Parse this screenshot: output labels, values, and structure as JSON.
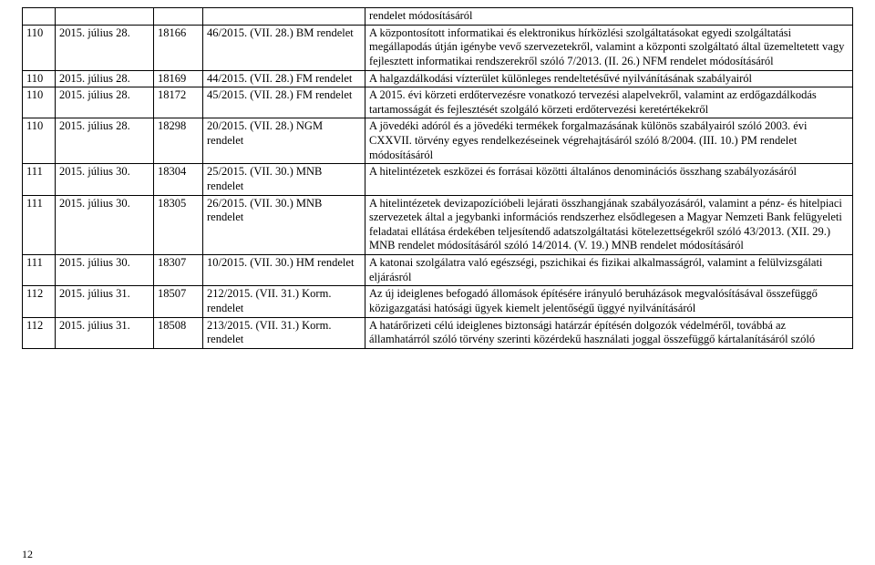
{
  "table": {
    "columns": [
      "c1",
      "c2",
      "c3",
      "c4",
      "c5"
    ],
    "rows": [
      {
        "c1": "",
        "c2": "",
        "c3": "",
        "c4": "",
        "c5": "rendelet módosításáról"
      },
      {
        "c1": "110",
        "c2": "2015. július 28.",
        "c3": "18166",
        "c4": "46/2015. (VII. 28.) BM rendelet",
        "c5": "A központosított informatikai és elektronikus hírközlési szolgáltatásokat egyedi szolgáltatási megállapodás útján igénybe vevő szervezetekről, valamint a központi szolgáltató által üzemeltetett vagy fejlesztett informatikai rendszerekről szóló 7/2013. (II. 26.) NFM rendelet módosításáról"
      },
      {
        "c1": "110",
        "c2": "2015. július 28.",
        "c3": "18169",
        "c4": "44/2015. (VII. 28.) FM rendelet",
        "c5": "A halgazdálkodási vízterület különleges rendeltetésűvé nyilvánításának szabályairól"
      },
      {
        "c1": "110",
        "c2": "2015. július 28.",
        "c3": "18172",
        "c4": "45/2015. (VII. 28.) FM rendelet",
        "c5": "A 2015. évi körzeti erdőtervezésre vonatkozó tervezési alapelvekről, valamint az erdőgazdálkodás tartamosságát és fejlesztését szolgáló körzeti erdőtervezési keretértékekről"
      },
      {
        "c1": "110",
        "c2": "2015. július 28.",
        "c3": "18298",
        "c4": "20/2015. (VII. 28.) NGM rendelet",
        "c5": "A jövedéki adóról és a jövedéki termékek forgalmazásának különös szabályairól szóló 2003. évi CXXVII. törvény egyes rendelkezéseinek végrehajtásáról szóló 8/2004. (III. 10.) PM rendelet módosításáról"
      },
      {
        "c1": "111",
        "c2": "2015. július 30.",
        "c3": "18304",
        "c4": "25/2015. (VII. 30.) MNB rendelet",
        "c5": "A hitelintézetek eszközei és forrásai közötti általános denominációs összhang szabályozásáról"
      },
      {
        "c1": "111",
        "c2": "2015. július 30.",
        "c3": "18305",
        "c4": "26/2015. (VII. 30.) MNB rendelet",
        "c5": "A hitelintézetek devizapozícióbeli lejárati összhangjának szabályozásáról, valamint a pénz- és hitelpiaci szervezetek által a jegybanki információs rendszerhez elsődlegesen a Magyar Nemzeti Bank felügyeleti feladatai ellátása érdekében teljesítendő adatszolgáltatási kötelezettségekről szóló 43/2013. (XII. 29.) MNB rendelet módosításáról szóló 14/2014. (V. 19.) MNB rendelet módosításáról"
      },
      {
        "c1": "111",
        "c2": "2015. július 30.",
        "c3": "18307",
        "c4": "10/2015. (VII. 30.) HM rendelet",
        "c5": "A katonai szolgálatra való egészségi, pszichikai és fizikai alkalmasságról, valamint a felülvizsgálati eljárásról"
      },
      {
        "c1": "112",
        "c2": "2015. július 31.",
        "c3": "18507",
        "c4": "212/2015. (VII. 31.) Korm. rendelet",
        "c5": "Az új ideiglenes befogadó állomások építésére irányuló beruházások megvalósításával összefüggő közigazgatási hatósági ügyek kiemelt jelentőségű üggyé nyilvánításáról"
      },
      {
        "c1": "112",
        "c2": "2015. július 31.",
        "c3": "18508",
        "c4": "213/2015. (VII. 31.) Korm. rendelet",
        "c5": "A határőrizeti célú ideiglenes biztonsági határzár építésén dolgozók védelméről, továbbá az államhatárról szóló törvény szerinti közérdekű használati joggal összefüggő kártalanításáról szóló"
      }
    ]
  },
  "pageNumber": "12"
}
